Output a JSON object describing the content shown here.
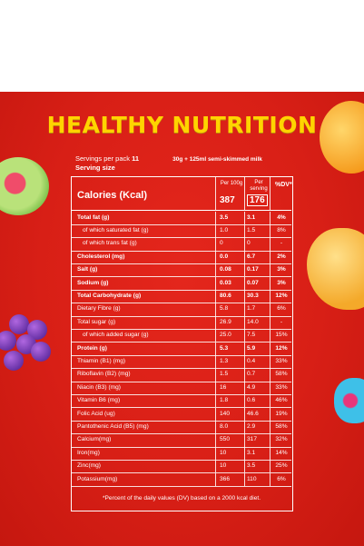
{
  "title": "HEALTHY NUTRITION",
  "servings": {
    "label": "Servings per pack",
    "value": "11",
    "serving_desc": "30g + 125ml semi-skimmed milk",
    "size_label": "Serving size"
  },
  "header": {
    "calories_label": "Calories (Kcal)",
    "per100_label": "Per 100g",
    "perserving_label": "Per serving",
    "dv_label": "%DV*",
    "calories_per100": "387",
    "calories_perserving": "176"
  },
  "rows": [
    {
      "label": "Total fat (g)",
      "v1": "3.5",
      "v2": "3.1",
      "dv": "4%",
      "bold": true
    },
    {
      "label": "of which saturated fat (g)",
      "v1": "1.0",
      "v2": "1.5",
      "dv": "8%",
      "indent": true
    },
    {
      "label": "of which trans fat (g)",
      "v1": "0",
      "v2": "0",
      "dv": "-",
      "indent": true
    },
    {
      "label": "Cholesterol (mg)",
      "v1": "0.0",
      "v2": "6.7",
      "dv": "2%",
      "bold": true
    },
    {
      "label": "Salt (g)",
      "v1": "0.08",
      "v2": "0.17",
      "dv": "3%",
      "bold": true
    },
    {
      "label": "Sodium (g)",
      "v1": "0.03",
      "v2": "0.07",
      "dv": "3%",
      "bold": true
    },
    {
      "label": "Total Carbohydrate (g)",
      "v1": "80.6",
      "v2": "30.3",
      "dv": "12%",
      "bold": true
    },
    {
      "label": "Dietary Fibre (g)",
      "v1": "5.8",
      "v2": "1.7",
      "dv": "6%",
      "indent": false
    },
    {
      "label": "Total sugar (g)",
      "v1": "26.9",
      "v2": "14.0",
      "dv": "-"
    },
    {
      "label": "of which added sugar (g)",
      "v1": "25.0",
      "v2": "7.5",
      "dv": "15%",
      "indent": true
    },
    {
      "label": "Protein (g)",
      "v1": "5.3",
      "v2": "5.9",
      "dv": "12%",
      "bold": true
    },
    {
      "label": "Thiamin (B1) (mg)",
      "v1": "1.3",
      "v2": "0.4",
      "dv": "33%"
    },
    {
      "label": "Riboflavin (B2) (mg)",
      "v1": "1.5",
      "v2": "0.7",
      "dv": "58%"
    },
    {
      "label": "Niacin (B3) (mg)",
      "v1": "16",
      "v2": "4.9",
      "dv": "33%"
    },
    {
      "label": "Vitamin B6 (mg)",
      "v1": "1.8",
      "v2": "0.6",
      "dv": "46%"
    },
    {
      "label": "Folic Acid (ug)",
      "v1": "140",
      "v2": "46.6",
      "dv": "19%"
    },
    {
      "label": "Pantothenic Acid (B5) (mg)",
      "v1": "8.0",
      "v2": "2.9",
      "dv": "58%"
    },
    {
      "label": "Calcium(mg)",
      "v1": "550",
      "v2": "317",
      "dv": "32%"
    },
    {
      "label": "Iron(mg)",
      "v1": "10",
      "v2": "3.1",
      "dv": "14%"
    },
    {
      "label": "Zinc(mg)",
      "v1": "10",
      "v2": "3.5",
      "dv": "25%"
    },
    {
      "label": "Potassium(mg)",
      "v1": "366",
      "v2": "110",
      "dv": "6%"
    }
  ],
  "footnote": "*Percent of the daily values (DV) based on a 2000 kcal diet."
}
